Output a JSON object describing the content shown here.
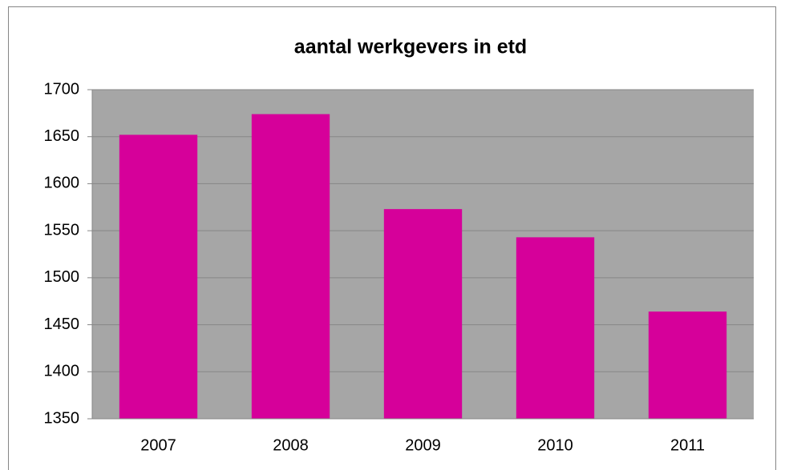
{
  "chart_data": {
    "type": "bar",
    "title": "aantal werkgevers in etd",
    "categories": [
      "2007",
      "2008",
      "2009",
      "2010",
      "2011"
    ],
    "values": [
      1652,
      1674,
      1573,
      1543,
      1464
    ],
    "color": "#d6009a",
    "ylim": [
      1350,
      1700
    ],
    "yticks": [
      1350,
      1400,
      1450,
      1500,
      1550,
      1600,
      1650,
      1700
    ],
    "grid": true
  }
}
